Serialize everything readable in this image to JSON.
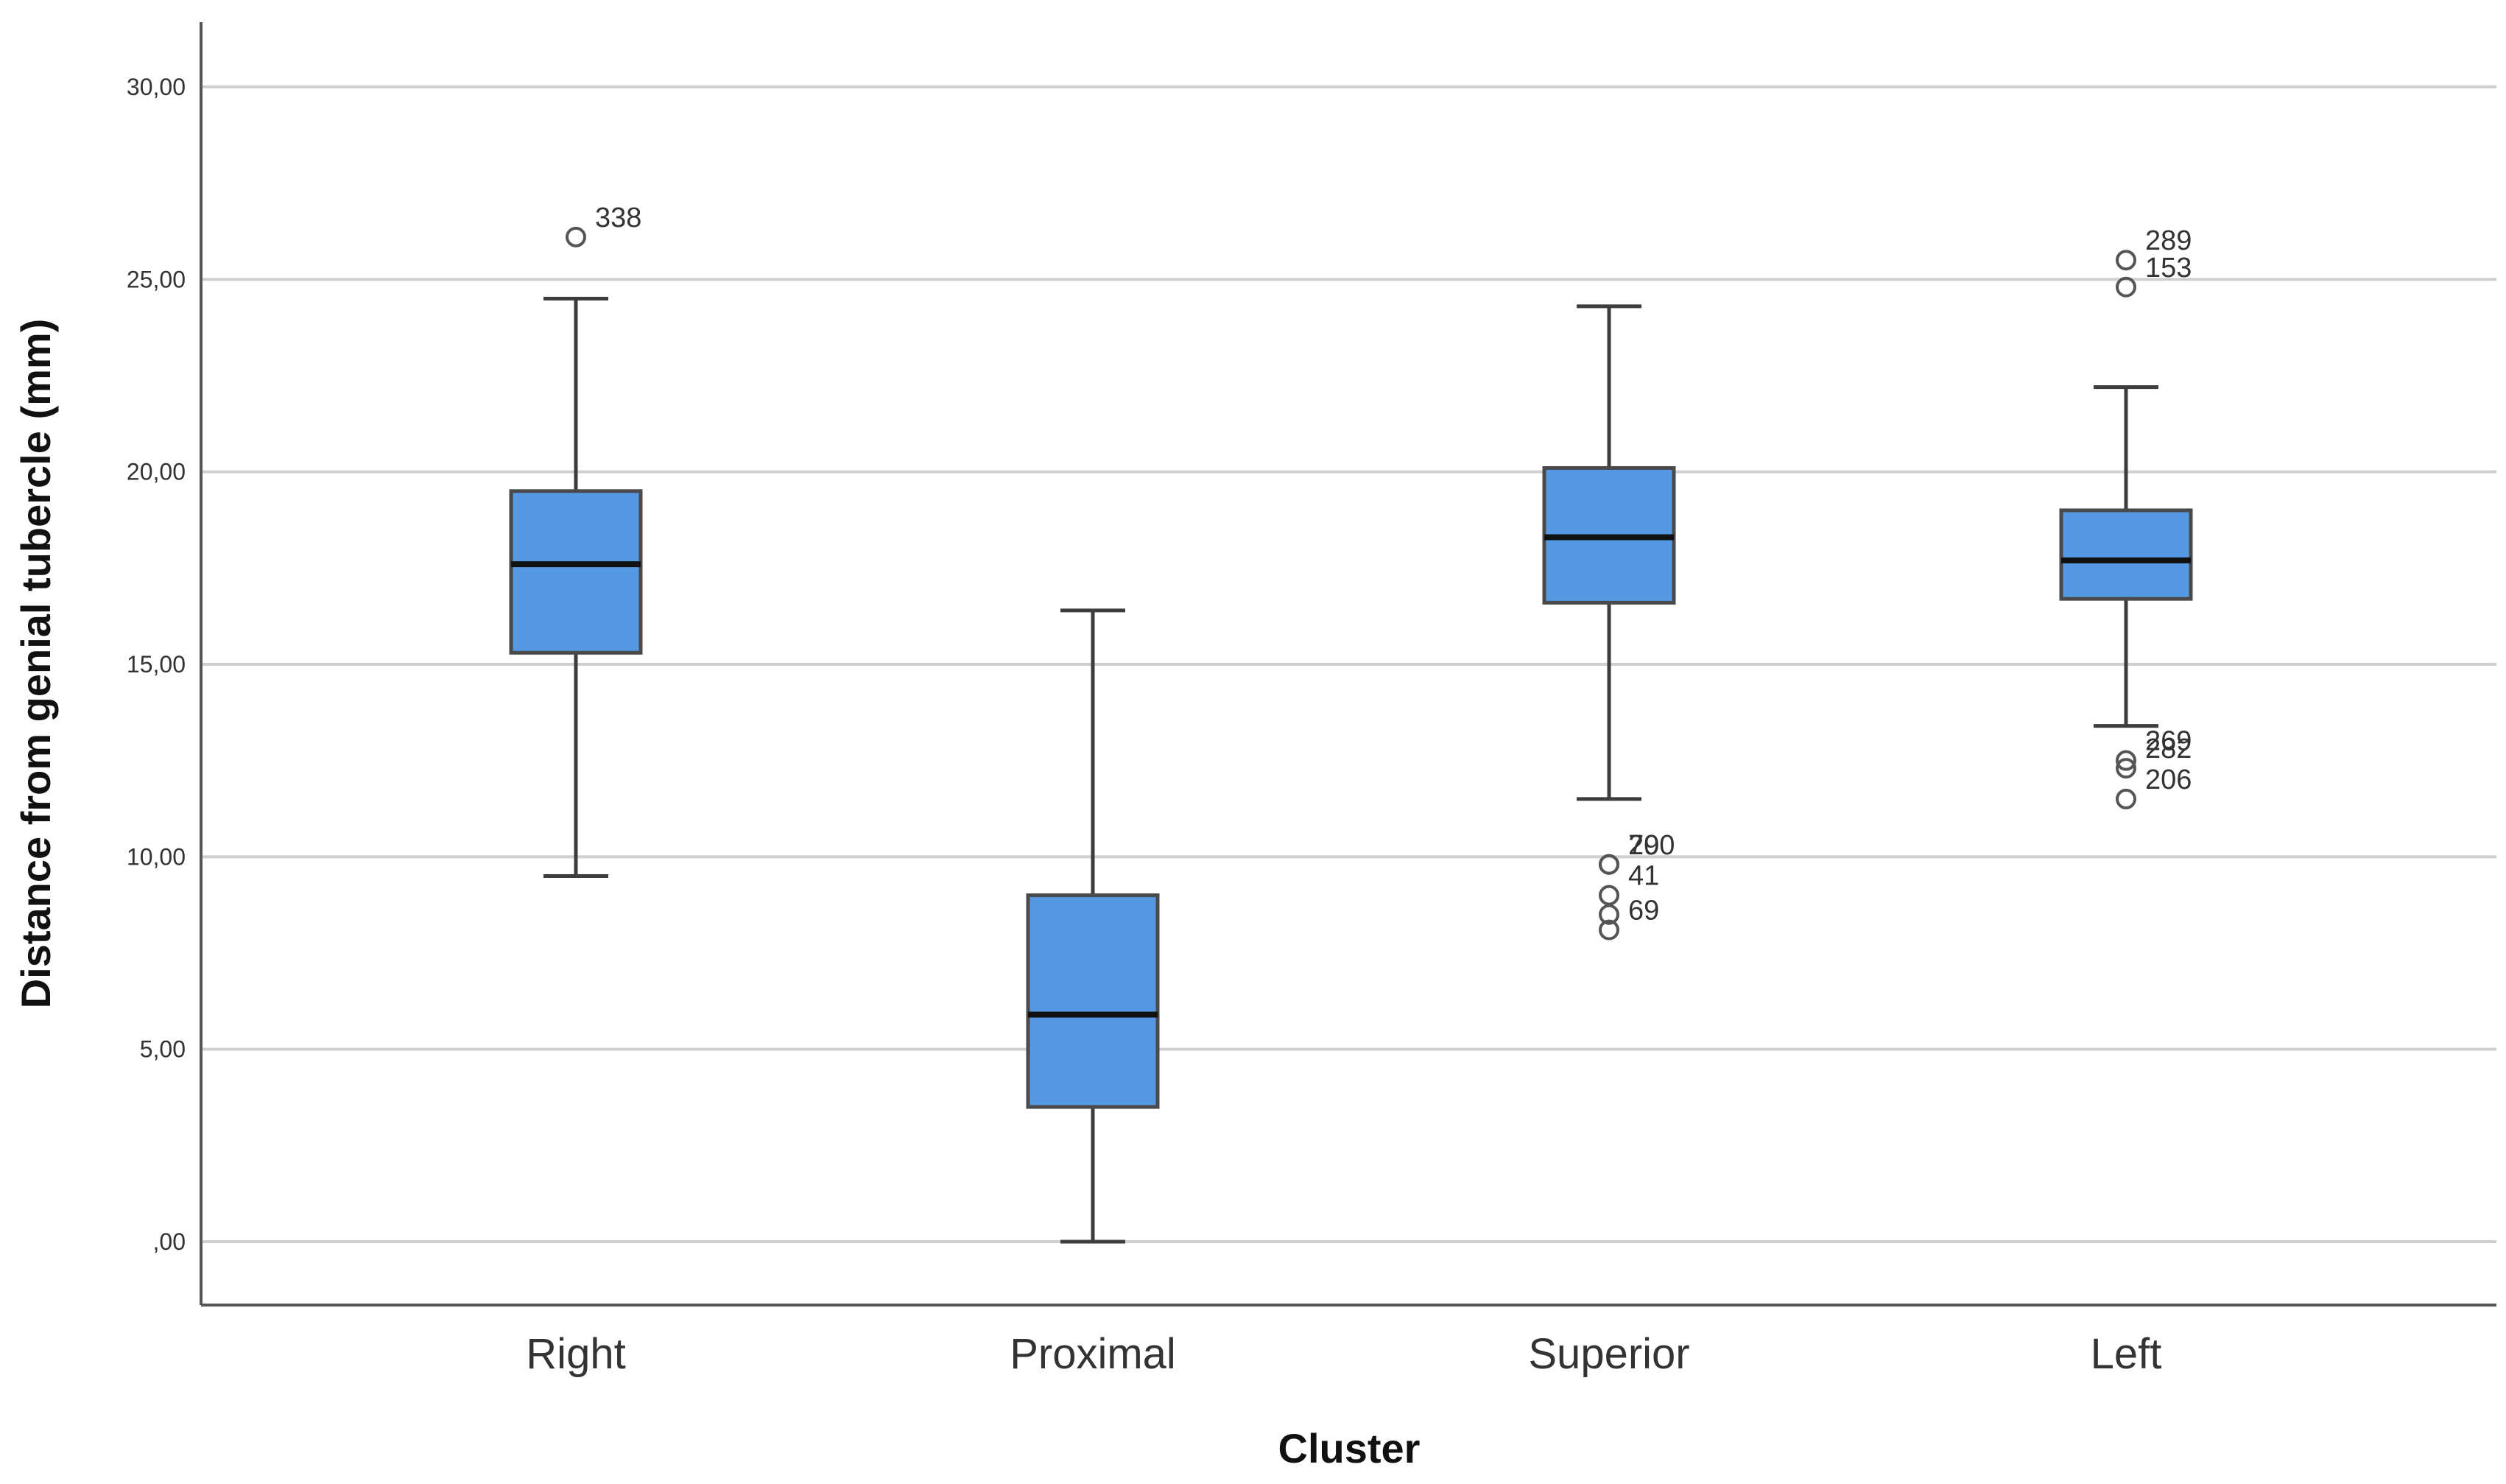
{
  "chart_data": {
    "type": "boxplot",
    "title": "",
    "xlabel": "Cluster",
    "ylabel": "Distance from genial tubercle (mm)",
    "ylim": [
      -1.5,
      31.5
    ],
    "yticks": [
      0,
      5,
      10,
      15,
      20,
      25,
      30
    ],
    "ytick_labels": [
      ",00",
      "5,00",
      "10,00",
      "15,00",
      "20,00",
      "25,00",
      "30,00"
    ],
    "grid": true,
    "box_color": "#5599e3",
    "categories": [
      "Right",
      "Proximal",
      "Superior",
      "Left"
    ],
    "boxes": [
      {
        "category": "Right",
        "whisker_low": 9.5,
        "q1": 15.3,
        "median": 17.6,
        "q3": 19.5,
        "whisker_high": 24.5,
        "outliers": [
          {
            "value": 26.1,
            "label": "338"
          }
        ]
      },
      {
        "category": "Proximal",
        "whisker_low": 0.0,
        "q1": 3.5,
        "median": 5.9,
        "q3": 9.0,
        "whisker_high": 16.4,
        "outliers": []
      },
      {
        "category": "Superior",
        "whisker_low": 11.5,
        "q1": 16.6,
        "median": 18.3,
        "q3": 20.1,
        "whisker_high": 24.3,
        "outliers": [
          {
            "value": 9.8,
            "label": "290"
          },
          {
            "value": 9.8,
            "label": "70"
          },
          {
            "value": 9.0,
            "label": "41"
          },
          {
            "value": 8.5,
            "label": ""
          },
          {
            "value": 8.1,
            "label": "69"
          }
        ]
      },
      {
        "category": "Left",
        "whisker_low": 13.4,
        "q1": 16.7,
        "median": 17.7,
        "q3": 19.0,
        "whisker_high": 22.2,
        "outliers": [
          {
            "value": 25.5,
            "label": "289"
          },
          {
            "value": 24.8,
            "label": "153"
          },
          {
            "value": 12.5,
            "label": "269"
          },
          {
            "value": 12.3,
            "label": "282"
          },
          {
            "value": 11.5,
            "label": "206"
          }
        ]
      }
    ]
  }
}
